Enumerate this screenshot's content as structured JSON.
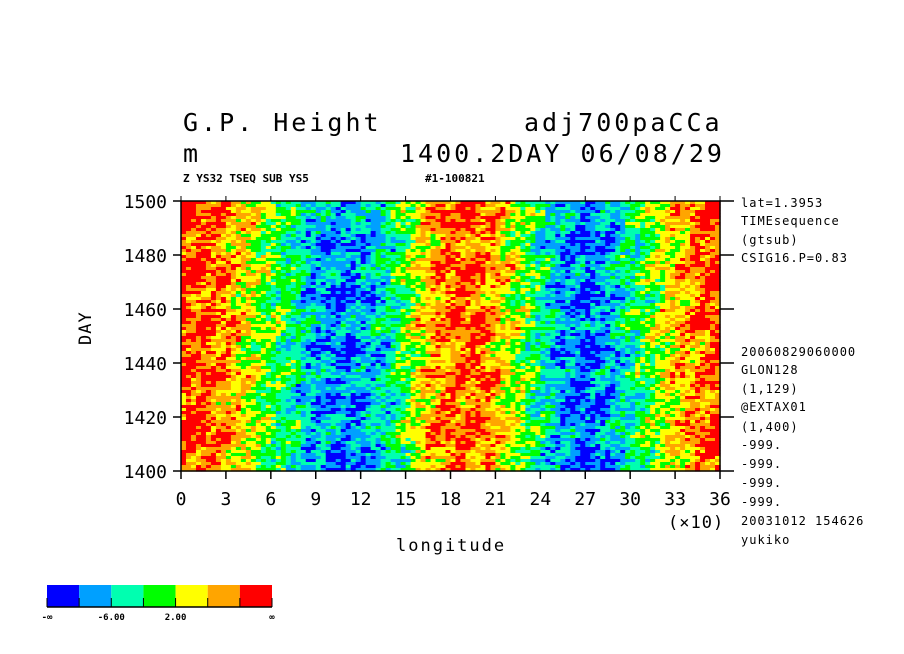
{
  "header": {
    "title_left": "G.P. Height",
    "title_right": "adj700paCCa",
    "unit": "m",
    "time_label": "1400.2DAY 06/08/29",
    "subtitle": "Z YS32 TSEQ SUB YS5",
    "run_id": "#1-100821"
  },
  "side_info": [
    "lat=1.3953",
    "TIMEsequence",
    "(gtsub)",
    "CSIG16.P=0.83",
    "20060829060000",
    "GLON128",
    "(1,129)",
    "@EXTAX01",
    "(1,400)",
    "-999.",
    "-999.",
    "-999.",
    "-999.",
    "20031012 154626",
    "yukiko"
  ],
  "chart_data": {
    "type": "heatmap",
    "title": "G.P. Height",
    "xlabel": "longitude",
    "x_multiplier": "(×10)",
    "ylabel": "DAY",
    "xlim": [
      0,
      36
    ],
    "ylim": [
      1400,
      1500
    ],
    "x_ticks": [
      "0",
      "3",
      "6",
      "9",
      "12",
      "15",
      "18",
      "21",
      "24",
      "27",
      "30",
      "33",
      "36"
    ],
    "y_ticks": [
      "1400",
      "1420",
      "1440",
      "1460",
      "1480",
      "1500"
    ],
    "levels_colors": [
      "#0000ff",
      "#00a0ff",
      "#00ffb0",
      "#00ff00",
      "#ffff00",
      "#ffa500",
      "#ff0000"
    ],
    "colorbar_labels": [
      "-∞",
      "-6.00",
      "2.00",
      "∞"
    ],
    "mean_level_by_longitude": {
      "x": [
        0,
        1.5,
        3,
        4.5,
        6,
        7.5,
        9,
        10.5,
        12,
        13.5,
        15,
        16.5,
        18,
        19.5,
        21,
        22.5,
        24,
        25.5,
        27,
        28.5,
        30,
        31.5,
        33,
        34.5,
        36
      ],
      "level_index": [
        5.8,
        5.6,
        5,
        4,
        3,
        2.2,
        1.2,
        0.8,
        1,
        1.8,
        3,
        4.6,
        5.4,
        5.4,
        4.8,
        3.6,
        2.2,
        1,
        0.6,
        1,
        2.2,
        3.2,
        4.4,
        5.2,
        5.8
      ]
    }
  }
}
